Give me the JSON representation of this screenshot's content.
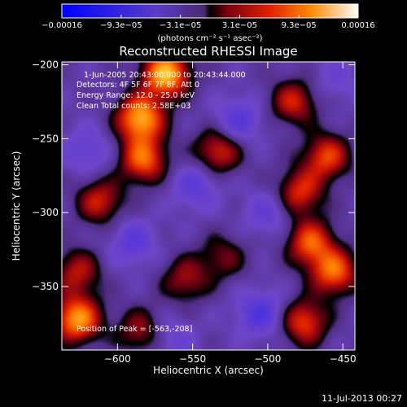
{
  "chart_data": {
    "type": "heatmap",
    "title": "Reconstructed RHESSI Image",
    "xlabel": "Heliocentric X (arcsec)",
    "ylabel": "Heliocentric Y (arcsec)",
    "xlim": [
      -637,
      -442
    ],
    "ylim": [
      -393,
      -198
    ],
    "x_ticks": [
      -600,
      -550,
      -500,
      -450
    ],
    "y_ticks": [
      -200,
      -250,
      -300,
      -350
    ],
    "x_tick_labels": [
      "−600",
      "−550",
      "−500",
      "−450"
    ],
    "y_tick_labels": [
      "−200",
      "−250",
      "−300",
      "−350"
    ],
    "colorbar": {
      "range": [
        -0.00016,
        0.00016
      ],
      "tick_labels": [
        "−0.00016",
        "−9.3e−05",
        "−3.1e−05",
        "3.1e−05",
        "9.3e−05",
        "0.00016"
      ],
      "units_label": "(photons cm⁻² s⁻¹ asec⁻²)"
    },
    "annotations": [
      "1-Jun-2005 20:43:00.000 to 20:43:44.000",
      "Detectors: 4F 5F 6F 7F 8F, Att 0",
      "Energy Range: 12.0 - 25.0 keV",
      "Clean   Total counts: 2.58E+03",
      "Position of Peak = [-563,-208]"
    ],
    "peak_position": [
      -563,
      -208
    ],
    "sources": [
      {
        "x": -568,
        "y": -206,
        "amp": 1.0
      },
      {
        "x": -585,
        "y": -236,
        "amp": 0.95
      },
      {
        "x": -627,
        "y": -372,
        "amp": 0.9
      },
      {
        "x": -627,
        "y": -340,
        "amp": 0.5
      },
      {
        "x": -583,
        "y": -264,
        "amp": 0.75
      },
      {
        "x": -533,
        "y": -258,
        "amp": 0.6
      },
      {
        "x": -483,
        "y": -225,
        "amp": 0.55
      },
      {
        "x": -461,
        "y": -262,
        "amp": 0.65
      },
      {
        "x": -479,
        "y": -286,
        "amp": 0.6
      },
      {
        "x": -472,
        "y": -320,
        "amp": 0.7
      },
      {
        "x": -456,
        "y": -340,
        "amp": 0.75
      },
      {
        "x": -476,
        "y": -374,
        "amp": 0.65
      },
      {
        "x": -555,
        "y": -345,
        "amp": 0.45
      },
      {
        "x": -585,
        "y": -380,
        "amp": 0.45
      },
      {
        "x": -612,
        "y": -292,
        "amp": 0.55
      },
      {
        "x": -530,
        "y": -330,
        "amp": 0.35
      },
      {
        "x": -520,
        "y": -238,
        "amp": -0.4
      },
      {
        "x": -548,
        "y": -282,
        "amp": -0.35
      },
      {
        "x": -590,
        "y": -320,
        "amp": -0.35
      },
      {
        "x": -505,
        "y": -368,
        "amp": -0.45
      },
      {
        "x": -620,
        "y": -258,
        "amp": -0.3
      },
      {
        "x": -500,
        "y": -300,
        "amp": -0.3
      },
      {
        "x": -455,
        "y": -210,
        "amp": -0.2
      },
      {
        "x": -565,
        "y": -385,
        "amp": -0.25
      }
    ]
  },
  "footer": {
    "timestamp": "11-Jul-2013 00:27"
  }
}
